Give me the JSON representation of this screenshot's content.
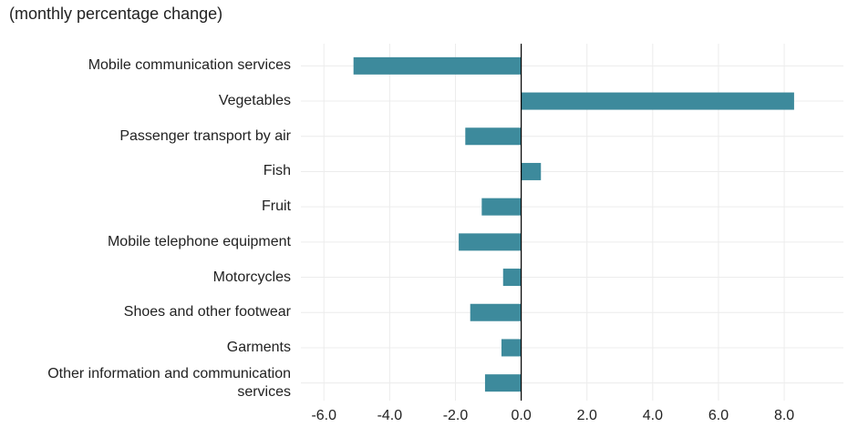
{
  "chart_data": {
    "type": "barh",
    "subtitle": "(monthly percentage change)",
    "categories": [
      "Mobile communication services",
      "Vegetables",
      "Passenger transport by air",
      "Fish",
      "Fruit",
      "Mobile telephone equipment",
      "Motorcycles",
      "Shoes and other footwear",
      "Garments",
      "Other information and communication services"
    ],
    "values": [
      -5.1,
      8.3,
      -1.7,
      0.6,
      -1.2,
      -1.9,
      -0.55,
      -1.55,
      -0.6,
      -1.1
    ],
    "color": "#3d8a9c",
    "xlim": [
      -6.7,
      9.8
    ],
    "xticks": [
      {
        "value": -6,
        "label": "-6.0"
      },
      {
        "value": -4,
        "label": "-4.0"
      },
      {
        "value": -2,
        "label": "-2.0"
      },
      {
        "value": 0,
        "label": "0.0"
      },
      {
        "value": 2,
        "label": "2.0"
      },
      {
        "value": 4,
        "label": "4.0"
      },
      {
        "value": 6,
        "label": "6.0"
      },
      {
        "value": 8,
        "label": "8.0"
      }
    ],
    "grid": true
  }
}
